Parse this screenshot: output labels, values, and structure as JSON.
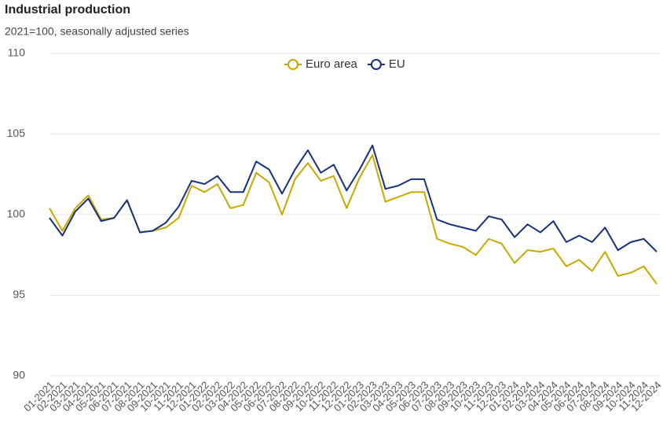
{
  "chart_data": {
    "type": "line",
    "title": "Industrial production",
    "subtitle": "2021=100, seasonally adjusted series",
    "categories": [
      "01-2021",
      "02-2021",
      "03-2021",
      "04-2021",
      "05-2021",
      "06-2021",
      "07-2021",
      "08-2021",
      "09-2021",
      "10-2021",
      "11-2021",
      "12-2021",
      "01-2022",
      "02-2022",
      "03-2022",
      "04-2022",
      "05-2022",
      "06-2022",
      "07-2022",
      "08-2022",
      "09-2022",
      "10-2022",
      "11-2022",
      "12-2022",
      "01-2023",
      "02-2023",
      "03-2023",
      "04-2023",
      "05-2023",
      "06-2023",
      "07-2023",
      "08-2023",
      "09-2023",
      "10-2023",
      "11-2023",
      "12-2023",
      "01-2024",
      "02-2024",
      "03-2024",
      "04-2024",
      "05-2024",
      "06-2024",
      "07-2024",
      "08-2024",
      "09-2024",
      "10-2024",
      "11-2024",
      "12-2024"
    ],
    "series": [
      {
        "name": "Euro area",
        "color": "#c9a800",
        "values": [
          100.4,
          99.0,
          100.4,
          101.2,
          99.7,
          99.8,
          100.9,
          98.9,
          99.0,
          99.2,
          99.8,
          101.8,
          101.4,
          101.9,
          100.4,
          100.6,
          102.6,
          102.0,
          100.0,
          102.2,
          103.2,
          102.1,
          102.4,
          100.4,
          102.3,
          103.7,
          100.8,
          101.1,
          101.4,
          101.4,
          98.5,
          98.2,
          98.0,
          97.5,
          98.5,
          98.2,
          97.0,
          97.8,
          97.7,
          97.9,
          96.8,
          97.2,
          96.5,
          97.7,
          96.2,
          96.4,
          96.8,
          95.7
        ]
      },
      {
        "name": "EU",
        "color": "#17317f",
        "values": [
          99.8,
          98.7,
          100.2,
          101.0,
          99.6,
          99.8,
          100.9,
          98.9,
          99.0,
          99.5,
          100.5,
          102.1,
          101.9,
          102.4,
          101.4,
          101.4,
          103.3,
          102.8,
          101.3,
          102.8,
          104.0,
          102.6,
          103.1,
          101.5,
          102.8,
          104.3,
          101.6,
          101.8,
          102.2,
          102.2,
          99.7,
          99.4,
          99.2,
          99.0,
          99.9,
          99.7,
          98.6,
          99.4,
          98.9,
          99.6,
          98.3,
          98.7,
          98.3,
          99.2,
          97.8,
          98.3,
          98.5,
          97.7
        ]
      }
    ],
    "ylim": [
      90,
      110
    ],
    "yticks": [
      90,
      95,
      100,
      105,
      110
    ],
    "grid": true
  }
}
